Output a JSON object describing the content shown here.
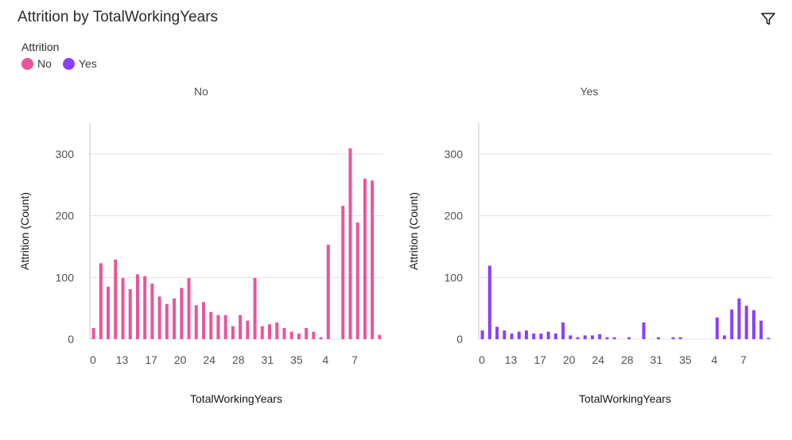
{
  "header": {
    "title": "Attrition by TotalWorkingYears",
    "filter_icon": "filter-icon"
  },
  "legend": {
    "title": "Attrition",
    "items": [
      {
        "label": "No",
        "color": "#e8559b"
      },
      {
        "label": "Yes",
        "color": "#8a3ffc"
      }
    ]
  },
  "chart_data": [
    {
      "type": "bar",
      "title": "No",
      "xlabel": "TotalWorkingYears",
      "ylabel": "Attrition (Count)",
      "ylim": [
        0,
        350
      ],
      "yticks": [
        0,
        100,
        200,
        300
      ],
      "xtick_labels": [
        "0",
        "13",
        "17",
        "20",
        "24",
        "28",
        "31",
        "35",
        "4",
        "7"
      ],
      "grid": true,
      "color": "#e8559b",
      "values": [
        18,
        123,
        85,
        129,
        99,
        81,
        105,
        102,
        90,
        69,
        57,
        66,
        83,
        99,
        55,
        60,
        44,
        39,
        39,
        21,
        39,
        30,
        99,
        21,
        24,
        27,
        18,
        12,
        9,
        18,
        12,
        3,
        153,
        0,
        216,
        309,
        189,
        260,
        257,
        7
      ]
    },
    {
      "type": "bar",
      "title": "Yes",
      "xlabel": "TotalWorkingYears",
      "ylabel": "Attrition (Count)",
      "ylim": [
        0,
        350
      ],
      "yticks": [
        0,
        100,
        200,
        300
      ],
      "xtick_labels": [
        "0",
        "13",
        "17",
        "20",
        "24",
        "28",
        "31",
        "35",
        "4",
        "7"
      ],
      "grid": true,
      "color": "#8a3ffc",
      "values": [
        14,
        119,
        20,
        14,
        9,
        12,
        14,
        9,
        9,
        12,
        9,
        27,
        6,
        3,
        6,
        6,
        8,
        3,
        3,
        0,
        3,
        0,
        27,
        0,
        3,
        0,
        3,
        3,
        0,
        0,
        0,
        0,
        35,
        6,
        48,
        66,
        54,
        47,
        30,
        2
      ]
    }
  ]
}
